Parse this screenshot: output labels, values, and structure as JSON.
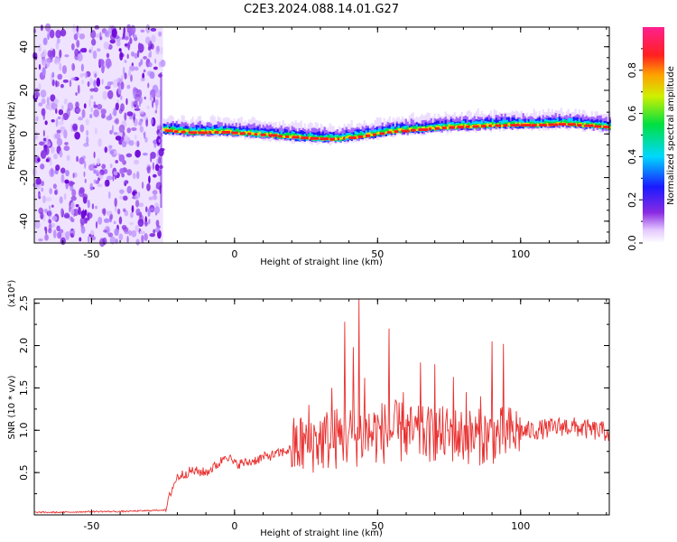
{
  "figure_title": "C2E3.2024.088.14.01.G27",
  "chart_data": [
    {
      "type": "heatmap",
      "xlabel": "Height of straight line (km)",
      "ylabel": "Frequency (Hz)",
      "xlim": [
        -70,
        131
      ],
      "ylim": [
        -50,
        49
      ],
      "x_ticks": [
        -50,
        0,
        50,
        100
      ],
      "x_tick_labels": [
        "-50",
        "0",
        "50",
        "100"
      ],
      "y_ticks": [
        -40,
        -20,
        0,
        20,
        40
      ],
      "y_tick_labels": [
        "-40",
        "-20",
        "0",
        "20",
        "40"
      ],
      "colorbar": {
        "label": "Normalized spectral amplitude",
        "range": [
          0,
          1
        ],
        "ticks": [
          0.0,
          0.2,
          0.4,
          0.6,
          0.8
        ],
        "tick_labels": [
          "0.0",
          "0.2",
          "0.4",
          "0.6",
          "0.8"
        ],
        "colormap": "rainbow (white-violet-blue-cyan-green-yellow-red-magenta)"
      },
      "noise_region_x": [
        -70,
        -25
      ],
      "signal_start_x": -25,
      "signal_peak_frequency": {
        "x": [
          -25,
          -15,
          -5,
          5,
          15,
          25,
          35,
          45,
          55,
          65,
          75,
          85,
          95,
          105,
          115,
          125,
          131
        ],
        "y": [
          1.5,
          0.5,
          0.8,
          0,
          -1,
          -2,
          -2.5,
          -1,
          1,
          2,
          3,
          3.5,
          4,
          4,
          4.5,
          3.5,
          3
        ]
      }
    },
    {
      "type": "line",
      "xlabel": "Height of straight line (km)",
      "ylabel": "SNR (10 * v/v)",
      "y_scale_note": "(x10⁴)",
      "xlim": [
        -70,
        131
      ],
      "ylim": [
        0,
        2.55
      ],
      "x_ticks": [
        -50,
        0,
        50,
        100
      ],
      "x_tick_labels": [
        "-50",
        "0",
        "50",
        "100"
      ],
      "y_ticks": [
        0.5,
        1.0,
        1.5,
        2.0,
        2.5
      ],
      "y_tick_labels": [
        "0.5",
        "1.0",
        "1.5",
        "2.0",
        "2.5"
      ],
      "series": [
        {
          "color": "#e8302f",
          "x": [
            -70,
            -60,
            -50,
            -40,
            -30,
            -24,
            -22,
            -20,
            -15,
            -10,
            -5,
            -3,
            0,
            5,
            10,
            15,
            20,
            25,
            30,
            35,
            40,
            45,
            50,
            55,
            60,
            65,
            70,
            75,
            80,
            85,
            90,
            95,
            100,
            105,
            110,
            115,
            120,
            125,
            131
          ],
          "y": [
            0.03,
            0.03,
            0.04,
            0.04,
            0.05,
            0.06,
            0.3,
            0.45,
            0.52,
            0.5,
            0.62,
            0.72,
            0.6,
            0.62,
            0.68,
            0.72,
            0.78,
            0.85,
            0.88,
            0.9,
            0.93,
            0.95,
            0.97,
            0.98,
            0.97,
            0.95,
            0.95,
            0.95,
            0.93,
            0.92,
            0.93,
            0.95,
            0.98,
            1.0,
            1.02,
            1.05,
            1.03,
            1.0,
            0.98
          ]
        }
      ],
      "spikes": [
        {
          "x": 38.5,
          "y": 2.28
        },
        {
          "x": 41.5,
          "y": 1.98
        },
        {
          "x": 43.5,
          "y": 2.55
        },
        {
          "x": 45.5,
          "y": 1.62
        },
        {
          "x": 54,
          "y": 2.2
        },
        {
          "x": 65,
          "y": 1.8
        },
        {
          "x": 70,
          "y": 1.78
        },
        {
          "x": 76.5,
          "y": 1.63
        },
        {
          "x": 90,
          "y": 2.05
        },
        {
          "x": 94,
          "y": 2.02
        },
        {
          "x": 81,
          "y": 1.45
        },
        {
          "x": 86,
          "y": 1.4
        },
        {
          "x": 59,
          "y": 1.45
        },
        {
          "x": 34,
          "y": 1.5
        },
        {
          "x": 26,
          "y": 1.3
        }
      ]
    }
  ]
}
